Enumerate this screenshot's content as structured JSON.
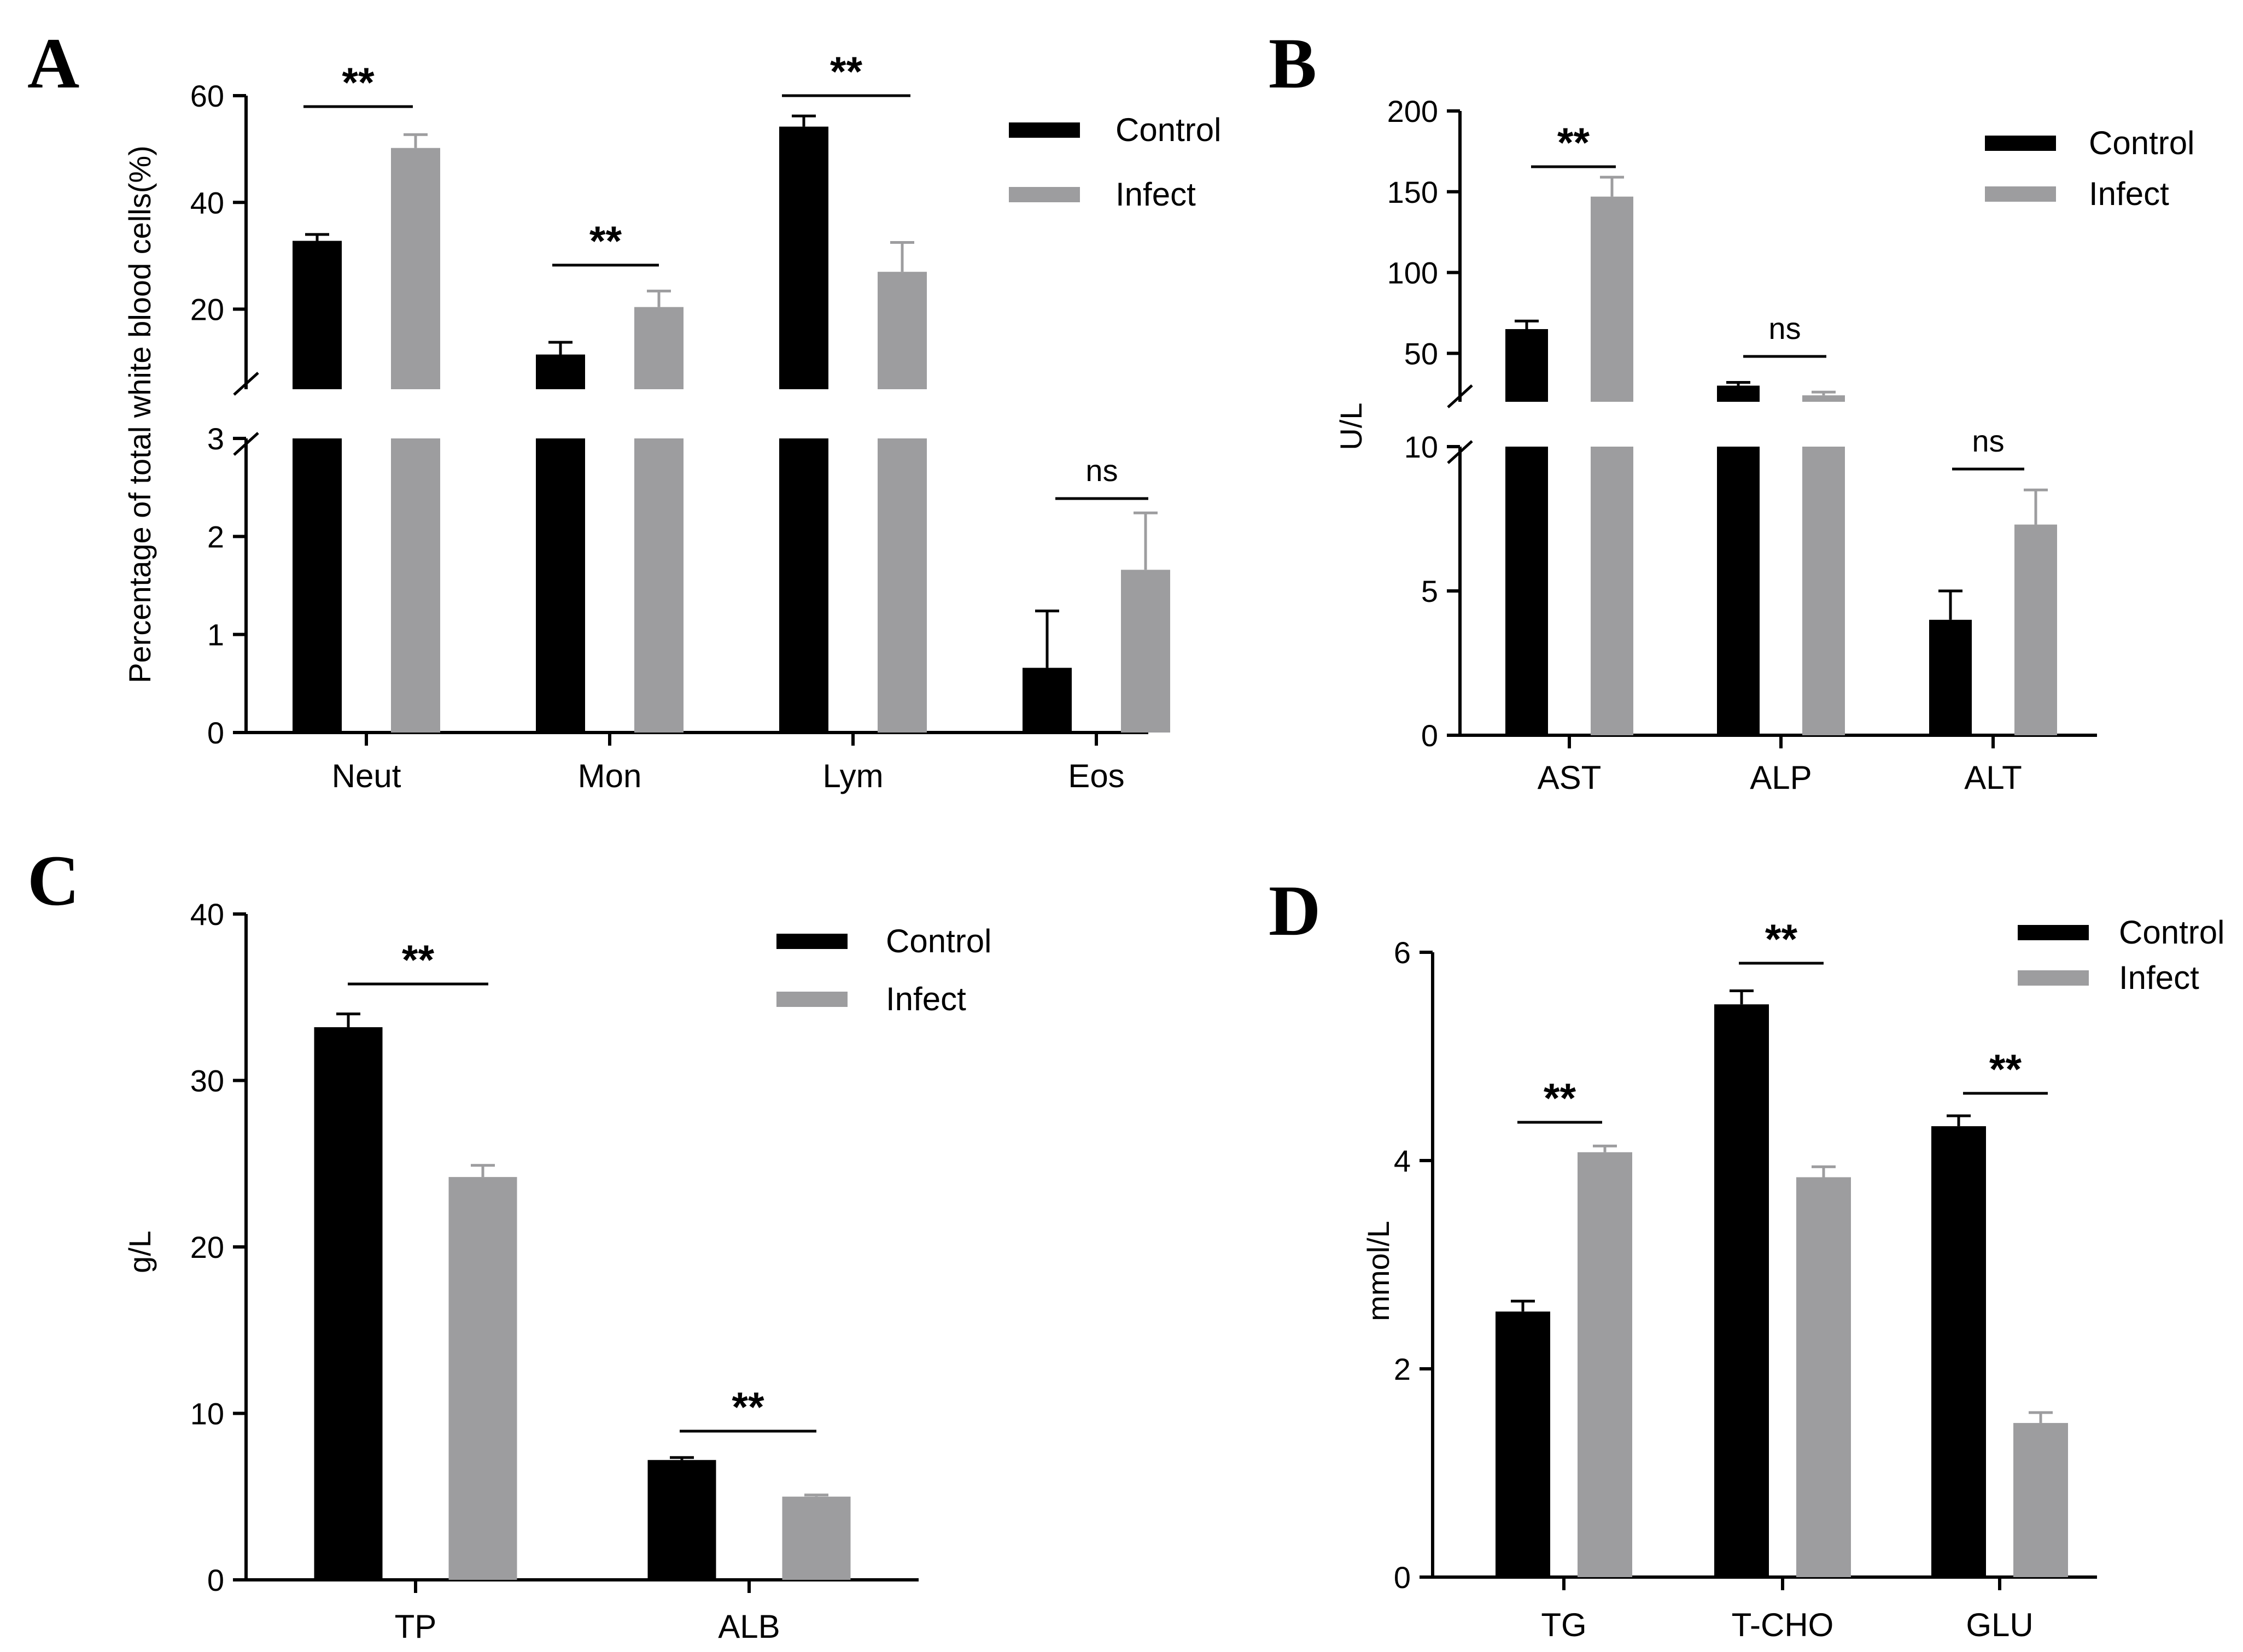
{
  "colors": {
    "control": "#000000",
    "infect": "#9d9d9f",
    "axis": "#000000"
  },
  "chart_data": [
    {
      "panel": "A",
      "type": "bar",
      "ylabel": "Percentage of total white blood cells(%)",
      "categories": [
        "Neut",
        "Mon",
        "Lym",
        "Eos"
      ],
      "series": [
        {
          "name": "Control",
          "values": [
            32.8,
            11.5,
            54.2,
            0.66
          ],
          "errors": [
            1.2,
            2.3,
            2.0,
            0.58
          ]
        },
        {
          "name": "Infect",
          "values": [
            50.2,
            20.4,
            27.0,
            1.66
          ],
          "errors": [
            2.5,
            3.0,
            5.5,
            0.58
          ]
        }
      ],
      "significance": [
        "**",
        "**",
        "**",
        "ns"
      ],
      "axis_break": {
        "lower_range": [
          0,
          3
        ],
        "upper_range": [
          5,
          60
        ]
      },
      "lower_ticks": [
        "0",
        "1",
        "2",
        "3"
      ],
      "upper_ticks": [
        "20",
        "40",
        "60"
      ],
      "legend": [
        "Control",
        "Infect"
      ]
    },
    {
      "panel": "B",
      "type": "bar",
      "ylabel": "U/L",
      "categories": [
        "AST",
        "ALP",
        "ALT"
      ],
      "series": [
        {
          "name": "Control",
          "values": [
            65,
            30,
            4.0
          ],
          "errors": [
            5,
            2,
            1.0
          ]
        },
        {
          "name": "Infect",
          "values": [
            147,
            24,
            7.3
          ],
          "errors": [
            12,
            2,
            1.2
          ]
        }
      ],
      "significance": [
        "**",
        "ns",
        "ns"
      ],
      "axis_break": {
        "lower_range": [
          0,
          10
        ],
        "upper_range": [
          20,
          200
        ]
      },
      "lower_ticks": [
        "0",
        "5",
        "10"
      ],
      "upper_ticks": [
        "50",
        "100",
        "150",
        "200"
      ],
      "legend": [
        "Control",
        "Infect"
      ]
    },
    {
      "panel": "C",
      "type": "bar",
      "ylabel": "g/L",
      "categories": [
        "TP",
        "ALB"
      ],
      "series": [
        {
          "name": "Control",
          "values": [
            33.2,
            7.2
          ],
          "errors": [
            0.8,
            0.15
          ]
        },
        {
          "name": "Infect",
          "values": [
            24.2,
            5.0
          ],
          "errors": [
            0.7,
            0.1
          ]
        }
      ],
      "significance": [
        "**",
        "**"
      ],
      "ylim": [
        0,
        40
      ],
      "ticks": [
        "0",
        "10",
        "20",
        "30",
        "40"
      ],
      "legend": [
        "Control",
        "Infect"
      ]
    },
    {
      "panel": "D",
      "type": "bar",
      "ylabel": "mmol/L",
      "categories": [
        "TG",
        "T-CHO",
        "GLU"
      ],
      "series": [
        {
          "name": "Control",
          "values": [
            2.55,
            5.5,
            4.33
          ],
          "errors": [
            0.1,
            0.13,
            0.1
          ]
        },
        {
          "name": "Infect",
          "values": [
            4.08,
            3.84,
            1.48
          ],
          "errors": [
            0.06,
            0.1,
            0.1
          ]
        }
      ],
      "significance": [
        "**",
        "**",
        "**"
      ],
      "ylim": [
        0,
        6
      ],
      "ticks": [
        "0",
        "2",
        "4",
        "6"
      ],
      "legend": [
        "Control",
        "Infect"
      ]
    }
  ]
}
